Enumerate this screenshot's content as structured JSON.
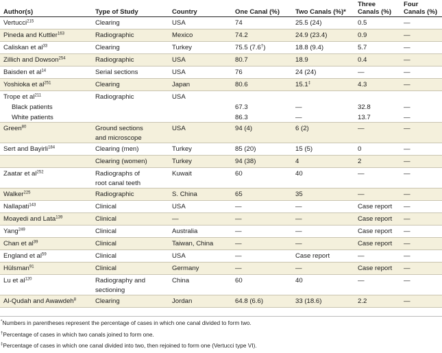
{
  "headers": {
    "author": "Author(s)",
    "type": "Type of Study",
    "country": "Country",
    "one": "One Canal (%)",
    "two": "Two Canals (%)*",
    "three_l1": "Three",
    "three_l2": "Canals (%)",
    "four_l1": "Four",
    "four_l2": "Canals (%)"
  },
  "rows": [
    {
      "author": "Vertucci",
      "ref": "215",
      "type": "Clearing",
      "country": "USA",
      "one": "74",
      "two": "25.5 (24)",
      "three": "0.5",
      "four": "—"
    },
    {
      "author": "Pineda and Kuttler",
      "ref": "163",
      "type": "Radiographic",
      "country": "Mexico",
      "one": "74.2",
      "two": "24.9 (23.4)",
      "three": "0.9",
      "four": "—"
    },
    {
      "author": "Caliskan et al",
      "ref": "33",
      "type": "Clearing",
      "country": "Turkey",
      "one": "75.5 (7.6",
      "one_sup": "†",
      "one_tail": ")",
      "two": "18.8 (9.4)",
      "three": "5.7",
      "four": "—"
    },
    {
      "author": "Zillich and Dowson",
      "ref": "254",
      "type": "Radiographic",
      "country": "USA",
      "one": "80.7",
      "two": "18.9",
      "three": "0.4",
      "four": "—"
    },
    {
      "author": "Baisden et al",
      "ref": "14",
      "type": "Serial sections",
      "country": "USA",
      "one": "76",
      "two": "24 (24)",
      "three": "—",
      "four": "—"
    },
    {
      "author": "Yoshioka et al",
      "ref": "251",
      "type": "Clearing",
      "country": "Japan",
      "one": "80.6",
      "two": "15.1",
      "two_sup": "‡",
      "three": "4.3",
      "four": "—"
    },
    {
      "author": "Trope et al",
      "ref": "211",
      "type": "Radiographic",
      "country": "USA",
      "one": "",
      "two": "",
      "three": "",
      "four": "",
      "subrows": [
        {
          "author": "Black patients",
          "one": "67.3",
          "two": "—",
          "three": "32.8",
          "four": "—"
        },
        {
          "author": "White patients",
          "one": "86.3",
          "two": "—",
          "three": "13.7",
          "four": "—"
        }
      ]
    },
    {
      "author": "Green",
      "ref": "80",
      "type": "Ground sections",
      "type2": "and microscope",
      "country": "USA",
      "one": "94 (4)",
      "two": "6 (2)",
      "three": "—",
      "four": "—"
    },
    {
      "author": "Sert and Bayirli",
      "ref": "184",
      "type": "Clearing (men)",
      "country": "Turkey",
      "one": "85 (20)",
      "two": "15 (5)",
      "three": "0",
      "four": "—"
    },
    {
      "author": "",
      "ref": "",
      "type": "Clearing (women)",
      "country": "Turkey",
      "one": "94 (38)",
      "two": "4",
      "three": "2",
      "four": "—"
    },
    {
      "author": "Zaatar et al",
      "ref": "252",
      "type": "Radiographs of",
      "type2": "root canal teeth",
      "country": "Kuwait",
      "one": "60",
      "two": "40",
      "three": "—",
      "four": "—"
    },
    {
      "author": "Walker",
      "ref": "225",
      "type": "Radiographic",
      "country": "S. China",
      "one": "65",
      "two": "35",
      "three": "—",
      "four": "—"
    },
    {
      "author": "Nallapati",
      "ref": "143",
      "type": "Clinical",
      "country": "USA",
      "one": "—",
      "two": "—",
      "three": "Case report",
      "four": "—"
    },
    {
      "author": "Moayedi and Lata",
      "ref": "139",
      "type": "Clinical",
      "country": "—",
      "one": "—",
      "two": "—",
      "three": "Case report",
      "four": "—"
    },
    {
      "author": "Yang",
      "ref": "249",
      "type": "Clinical",
      "country": "Australia",
      "one": "—",
      "two": "—",
      "three": "Case report",
      "four": "—"
    },
    {
      "author": "Chan et al",
      "ref": "39",
      "type": "Clinical",
      "country": "Taiwan, China",
      "one": "—",
      "two": "—",
      "three": "Case report",
      "four": "—"
    },
    {
      "author": "England et al",
      "ref": "59",
      "type": "Clinical",
      "country": "USA",
      "one": "—",
      "two": "Case report",
      "three": "—",
      "four": "—"
    },
    {
      "author": "Hülsman",
      "ref": "91",
      "type": "Clinical",
      "country": "Germany",
      "one": "—",
      "two": "—",
      "three": "Case report",
      "four": "—"
    },
    {
      "author": "Lu et al",
      "ref": "120",
      "type": "Radiography and",
      "type2": "sectioning",
      "country": "China",
      "one": "60",
      "two": "40",
      "three": "—",
      "four": "—"
    },
    {
      "author": "Al-Qudah and Awawdeh",
      "ref": "8",
      "type": "Clearing",
      "country": "Jordan",
      "one": "64.8 (6.6)",
      "two": "33 (18.6)",
      "three": "2.2",
      "four": "—"
    }
  ],
  "footnotes": [
    {
      "mark": "*",
      "text": "Numbers in parentheses represent the percentage of cases in which one canal divided to form two."
    },
    {
      "mark": "†",
      "text": "Percentage of cases in which two canals joined to form one."
    },
    {
      "mark": "‡",
      "text": "Percentage of cases in which one canal divided into two, then rejoined to form one (Vertucci type VI)."
    }
  ]
}
